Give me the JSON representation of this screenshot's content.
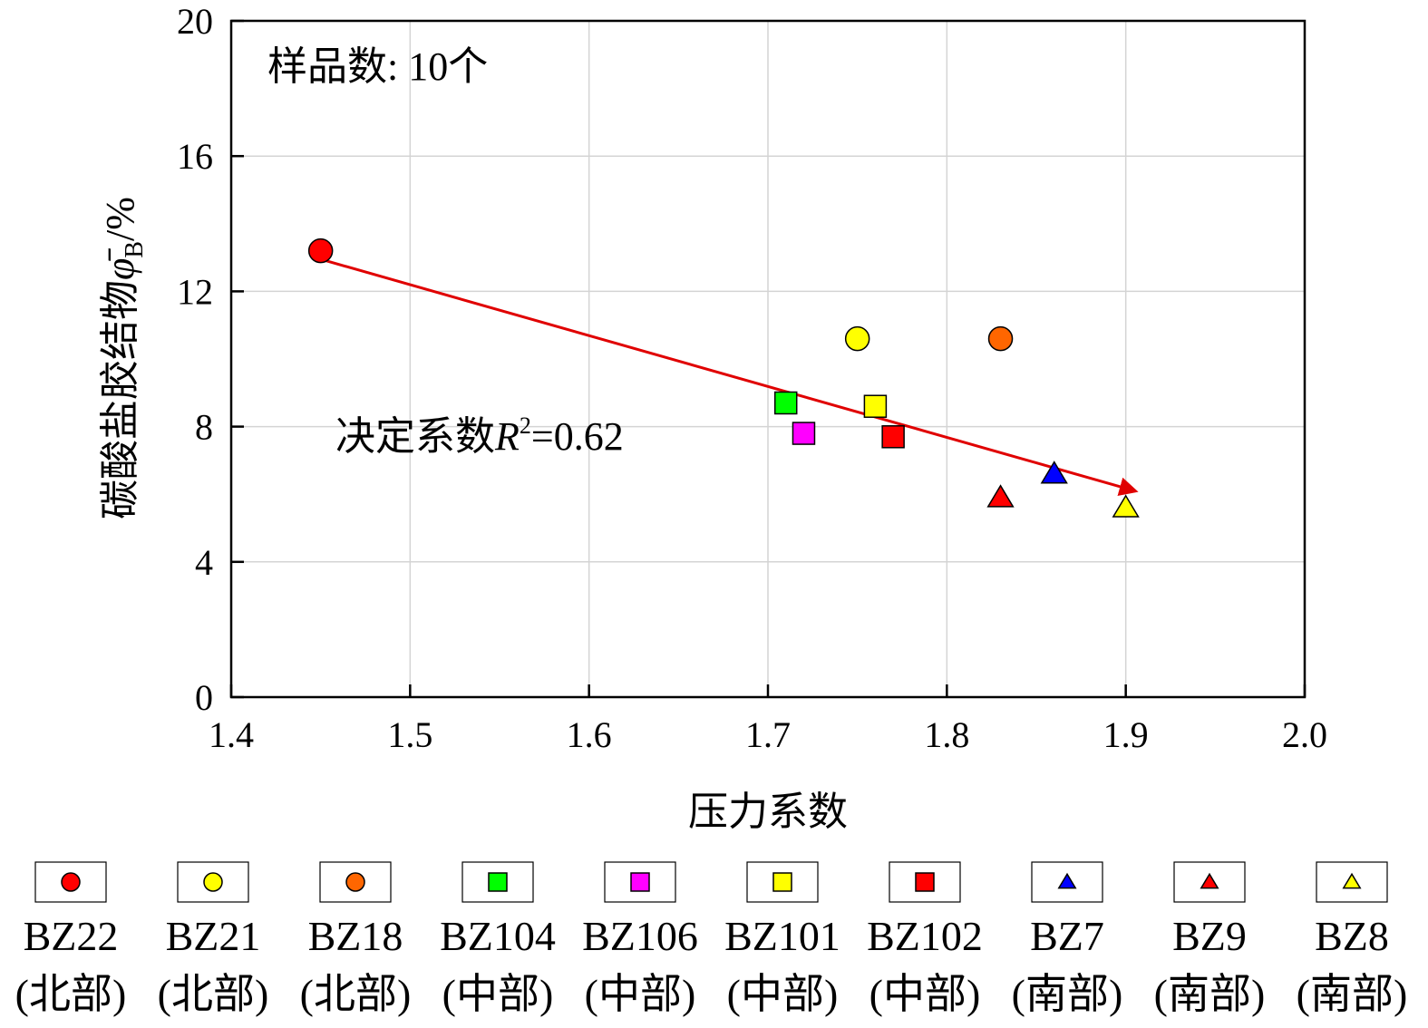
{
  "chart_data": {
    "type": "scatter",
    "xlabel": "压力系数",
    "ylabel_main": "碳酸盐胶结物",
    "ylabel_symbol": "φ̄",
    "ylabel_subscript": "B",
    "ylabel_unit": "/%",
    "xlim": [
      1.4,
      2.0
    ],
    "ylim": [
      0,
      20
    ],
    "xticks": [
      "1.4",
      "1.5",
      "1.6",
      "1.7",
      "1.8",
      "1.9",
      "2.0"
    ],
    "yticks": [
      "0",
      "4",
      "8",
      "12",
      "16",
      "20"
    ],
    "grid": true,
    "legend_position": "bottom",
    "annotations": {
      "sample_count": "样品数: 10个",
      "r2_prefix": "决定系数",
      "r2_symbol": "R",
      "r2_exp": "2",
      "r2_value": "=0.62"
    },
    "trend_arrow": {
      "start": [
        1.45,
        12.95
      ],
      "end": [
        1.905,
        6.1
      ],
      "color": "#e00000"
    },
    "series": [
      {
        "name": "BZ22",
        "region": "(北部)",
        "marker": "circle",
        "color": "#ff0000",
        "x": 1.45,
        "y": 13.2
      },
      {
        "name": "BZ21",
        "region": "(北部)",
        "marker": "circle",
        "color": "#ffff00",
        "x": 1.75,
        "y": 10.6
      },
      {
        "name": "BZ18",
        "region": "(北部)",
        "marker": "circle",
        "color": "#ff6600",
        "x": 1.83,
        "y": 10.6
      },
      {
        "name": "BZ104",
        "region": "(中部)",
        "marker": "square",
        "color": "#00ff00",
        "x": 1.71,
        "y": 8.7
      },
      {
        "name": "BZ106",
        "region": "(中部)",
        "marker": "square",
        "color": "#ff00ff",
        "x": 1.72,
        "y": 7.8
      },
      {
        "name": "BZ101",
        "region": "(中部)",
        "marker": "square",
        "color": "#ffff00",
        "x": 1.76,
        "y": 8.6
      },
      {
        "name": "BZ102",
        "region": "(中部)",
        "marker": "square",
        "color": "#ff0000",
        "x": 1.77,
        "y": 7.7
      },
      {
        "name": "BZ7",
        "region": "(南部)",
        "marker": "triangle",
        "color": "#0000ff",
        "x": 1.86,
        "y": 6.6
      },
      {
        "name": "BZ9",
        "region": "(南部)",
        "marker": "triangle",
        "color": "#ff0000",
        "x": 1.83,
        "y": 5.9
      },
      {
        "name": "BZ8",
        "region": "(南部)",
        "marker": "triangle",
        "color": "#ffff00",
        "x": 1.9,
        "y": 5.6
      }
    ]
  }
}
